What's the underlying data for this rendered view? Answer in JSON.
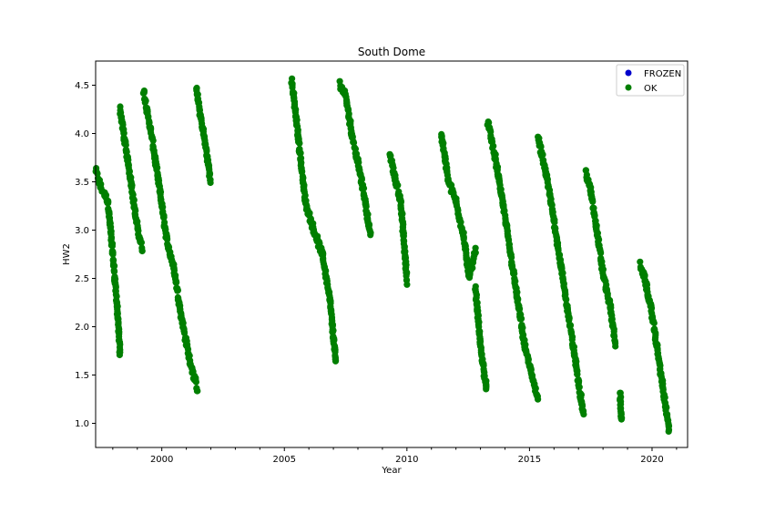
{
  "chart_data": {
    "type": "scatter",
    "title": "South Dome",
    "xlabel": "Year",
    "ylabel": "HW2",
    "xlim": [
      1997.3,
      2021.45
    ],
    "ylim": [
      0.75,
      4.75
    ],
    "xticks": [
      2000,
      2005,
      2010,
      2015,
      2020
    ],
    "xtick_labels": [
      "2000",
      "2005",
      "2010",
      "2015",
      "2020"
    ],
    "yticks": [
      1.0,
      1.5,
      2.0,
      2.5,
      3.0,
      3.5,
      4.0,
      4.5
    ],
    "ytick_labels": [
      "1.0",
      "1.5",
      "2.0",
      "2.5",
      "3.0",
      "3.5",
      "4.0",
      "4.5"
    ],
    "grid": false,
    "legend_position": "top-right",
    "series": [
      {
        "name": "FROZEN",
        "color": "#0000cc",
        "x": [],
        "y": []
      },
      {
        "name": "OK",
        "color": "#007f00",
        "segments": [
          {
            "x": [
              1997.3,
              1997.5,
              1997.8,
              1997.95,
              1998.15,
              1998.3
            ],
            "y": [
              3.62,
              3.45,
              3.3,
              2.9,
              2.3,
              1.72
            ]
          },
          {
            "x": [
              1998.3,
              1998.5,
              1998.75,
              1998.95,
              1999.2
            ],
            "y": [
              4.25,
              3.9,
              3.5,
              3.1,
              2.8
            ]
          },
          {
            "x": [
              1999.25,
              1999.6,
              1999.95,
              2000.2,
              2000.5,
              2000.8,
              2001.1,
              2001.45
            ],
            "y": [
              4.45,
              3.95,
              3.35,
              2.9,
              2.6,
              2.1,
              1.7,
              1.35
            ]
          },
          {
            "x": [
              2001.4,
              2001.6,
              2001.8,
              2002.0
            ],
            "y": [
              4.47,
              4.15,
              3.85,
              3.5
            ]
          },
          {
            "x": [
              2005.3,
              2005.55,
              2005.85,
              2006.2,
              2006.55,
              2006.85,
              2007.1
            ],
            "y": [
              4.55,
              4.0,
              3.3,
              3.0,
              2.75,
              2.3,
              1.62
            ]
          },
          {
            "x": [
              2007.25,
              2007.5,
              2007.75,
              2008.0,
              2008.3,
              2008.5
            ],
            "y": [
              4.52,
              4.4,
              4.0,
              3.7,
              3.3,
              2.95
            ]
          },
          {
            "x": [
              2009.3,
              2009.5,
              2009.75,
              2010.0
            ],
            "y": [
              3.8,
              3.55,
              3.3,
              2.47
            ]
          },
          {
            "x": [
              2011.4,
              2011.7,
              2012.0,
              2012.3,
              2012.55,
              2012.8
            ],
            "y": [
              4.0,
              3.5,
              3.3,
              2.95,
              2.5,
              2.8
            ]
          },
          {
            "x": [
              2012.8,
              2013.0,
              2013.25
            ],
            "y": [
              2.4,
              1.8,
              1.35
            ]
          },
          {
            "x": [
              2013.3,
              2013.6,
              2013.9,
              2014.2,
              2014.5,
              2014.8,
              2015.05,
              2015.35
            ],
            "y": [
              4.12,
              3.75,
              3.3,
              2.8,
              2.3,
              1.8,
              1.55,
              1.25
            ]
          },
          {
            "x": [
              2015.35,
              2015.7,
              2016.0,
              2016.3,
              2016.6,
              2016.9,
              2017.2
            ],
            "y": [
              3.95,
              3.55,
              3.1,
              2.6,
              2.1,
              1.6,
              1.1
            ]
          },
          {
            "x": [
              2017.3,
              2017.5,
              2017.75,
              2018.0,
              2018.3,
              2018.5
            ],
            "y": [
              3.6,
              3.4,
              3.0,
              2.55,
              2.2,
              1.83
            ]
          },
          {
            "x": [
              2018.7,
              2018.75
            ],
            "y": [
              1.3,
              1.03
            ]
          },
          {
            "x": [
              2019.5,
              2019.7,
              2019.95,
              2020.2,
              2020.45,
              2020.7
            ],
            "y": [
              2.65,
              2.5,
              2.2,
              1.8,
              1.35,
              0.92
            ]
          }
        ]
      }
    ]
  }
}
